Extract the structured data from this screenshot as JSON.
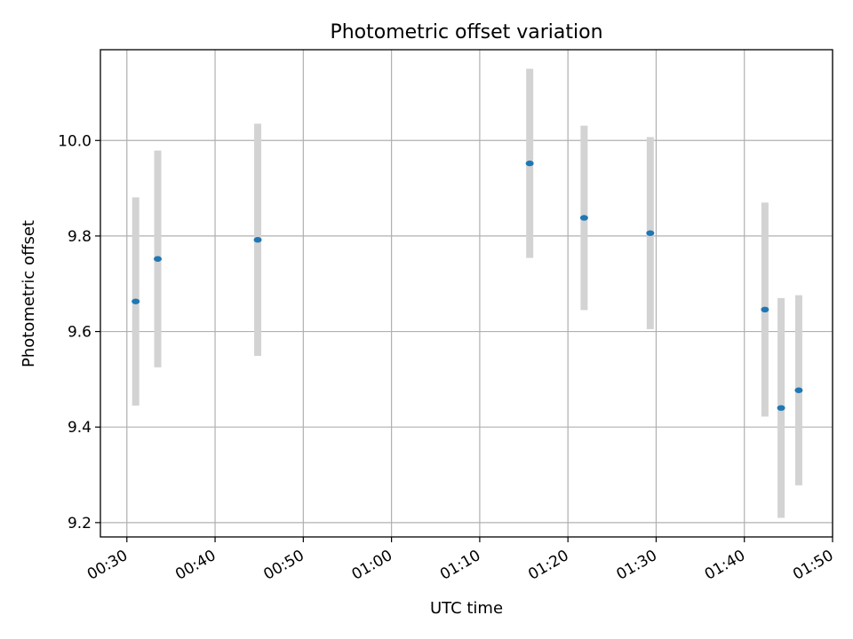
{
  "chart_data": {
    "type": "scatter",
    "title": "Photometric offset variation",
    "xlabel": "UTC time",
    "ylabel": "Photometric offset",
    "x_ticks": [
      "00:30",
      "00:40",
      "00:50",
      "01:00",
      "01:10",
      "01:20",
      "01:30",
      "01:40",
      "01:50"
    ],
    "y_ticks": [
      "9.2",
      "9.4",
      "9.6",
      "9.8",
      "10.0"
    ],
    "xlim": [
      "00:27:00",
      "01:50:00"
    ],
    "ylim": [
      9.17,
      10.19
    ],
    "grid": true,
    "points": [
      {
        "x": "00:31:00",
        "y": 9.663,
        "err": 0.218
      },
      {
        "x": "00:33:30",
        "y": 9.752,
        "err": 0.227
      },
      {
        "x": "00:44:50",
        "y": 9.792,
        "err": 0.243
      },
      {
        "x": "01:15:40",
        "y": 9.952,
        "err": 0.198
      },
      {
        "x": "01:21:50",
        "y": 9.838,
        "err": 0.193
      },
      {
        "x": "01:29:20",
        "y": 9.806,
        "err": 0.201
      },
      {
        "x": "01:42:20",
        "y": 9.646,
        "err": 0.224
      },
      {
        "x": "01:44:10",
        "y": 9.44,
        "err": 0.23
      },
      {
        "x": "01:46:10",
        "y": 9.477,
        "err": 0.199
      }
    ],
    "colors": {
      "marker": "#1f77b4",
      "errorbar": "#d3d3d3",
      "grid": "#b0b0b0"
    }
  }
}
